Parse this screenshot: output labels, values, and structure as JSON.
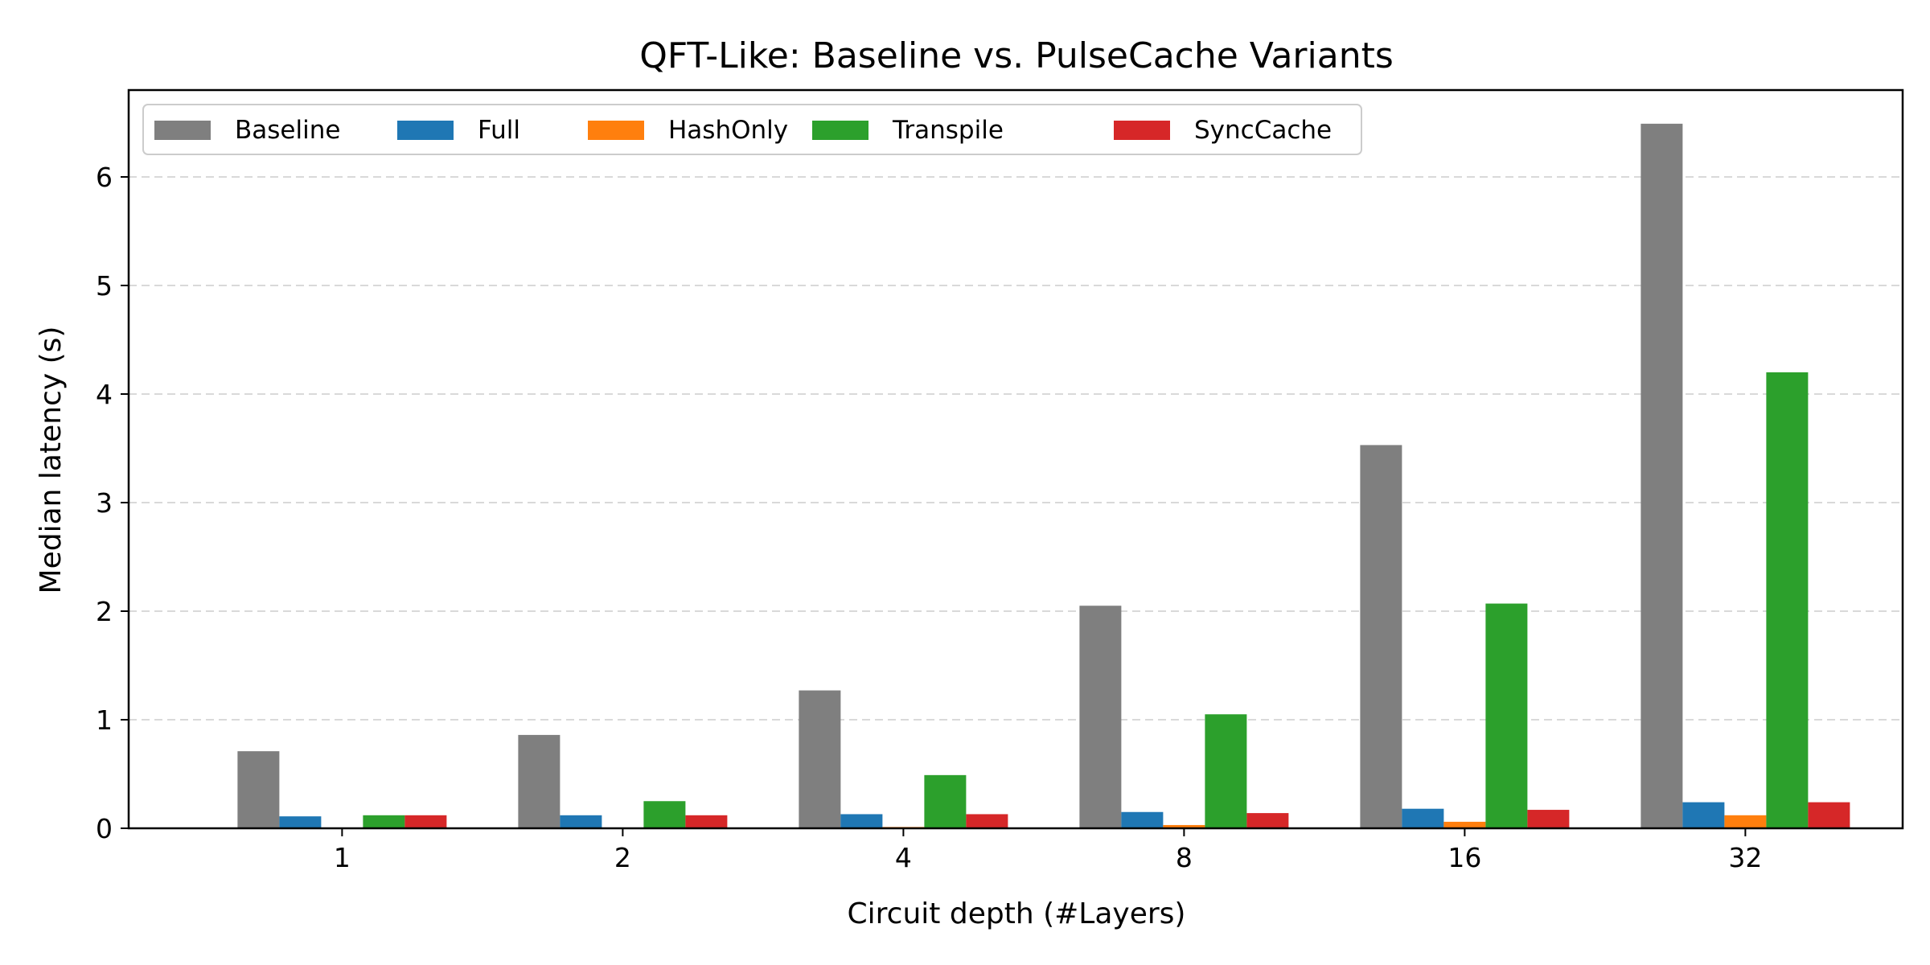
{
  "chart_data": {
    "type": "bar",
    "title": "QFT-Like: Baseline vs. PulseCache Variants",
    "xlabel": "Circuit depth (#Layers)",
    "ylabel": "Median latency (s)",
    "categories": [
      "1",
      "2",
      "4",
      "8",
      "16",
      "32"
    ],
    "ylim": [
      0,
      6.8
    ],
    "yticks": [
      "0",
      "1",
      "2",
      "3",
      "4",
      "5",
      "6"
    ],
    "grid": "horizontal dashed",
    "legend_position": "top-left",
    "legend_columns": 5,
    "series": [
      {
        "name": "Baseline",
        "color": "#7f7f7f",
        "values": [
          0.71,
          0.86,
          1.27,
          2.05,
          3.53,
          6.49
        ]
      },
      {
        "name": "Full",
        "color": "#1f77b4",
        "values": [
          0.11,
          0.12,
          0.13,
          0.15,
          0.18,
          0.24
        ]
      },
      {
        "name": "HashOnly",
        "color": "#ff7f0e",
        "values": [
          0.003,
          0.006,
          0.012,
          0.03,
          0.06,
          0.12
        ]
      },
      {
        "name": "Transpile",
        "color": "#2ca02c",
        "values": [
          0.12,
          0.25,
          0.49,
          1.05,
          2.07,
          4.2
        ]
      },
      {
        "name": "SyncCache",
        "color": "#d62728",
        "values": [
          0.12,
          0.12,
          0.13,
          0.14,
          0.17,
          0.24
        ]
      }
    ]
  }
}
